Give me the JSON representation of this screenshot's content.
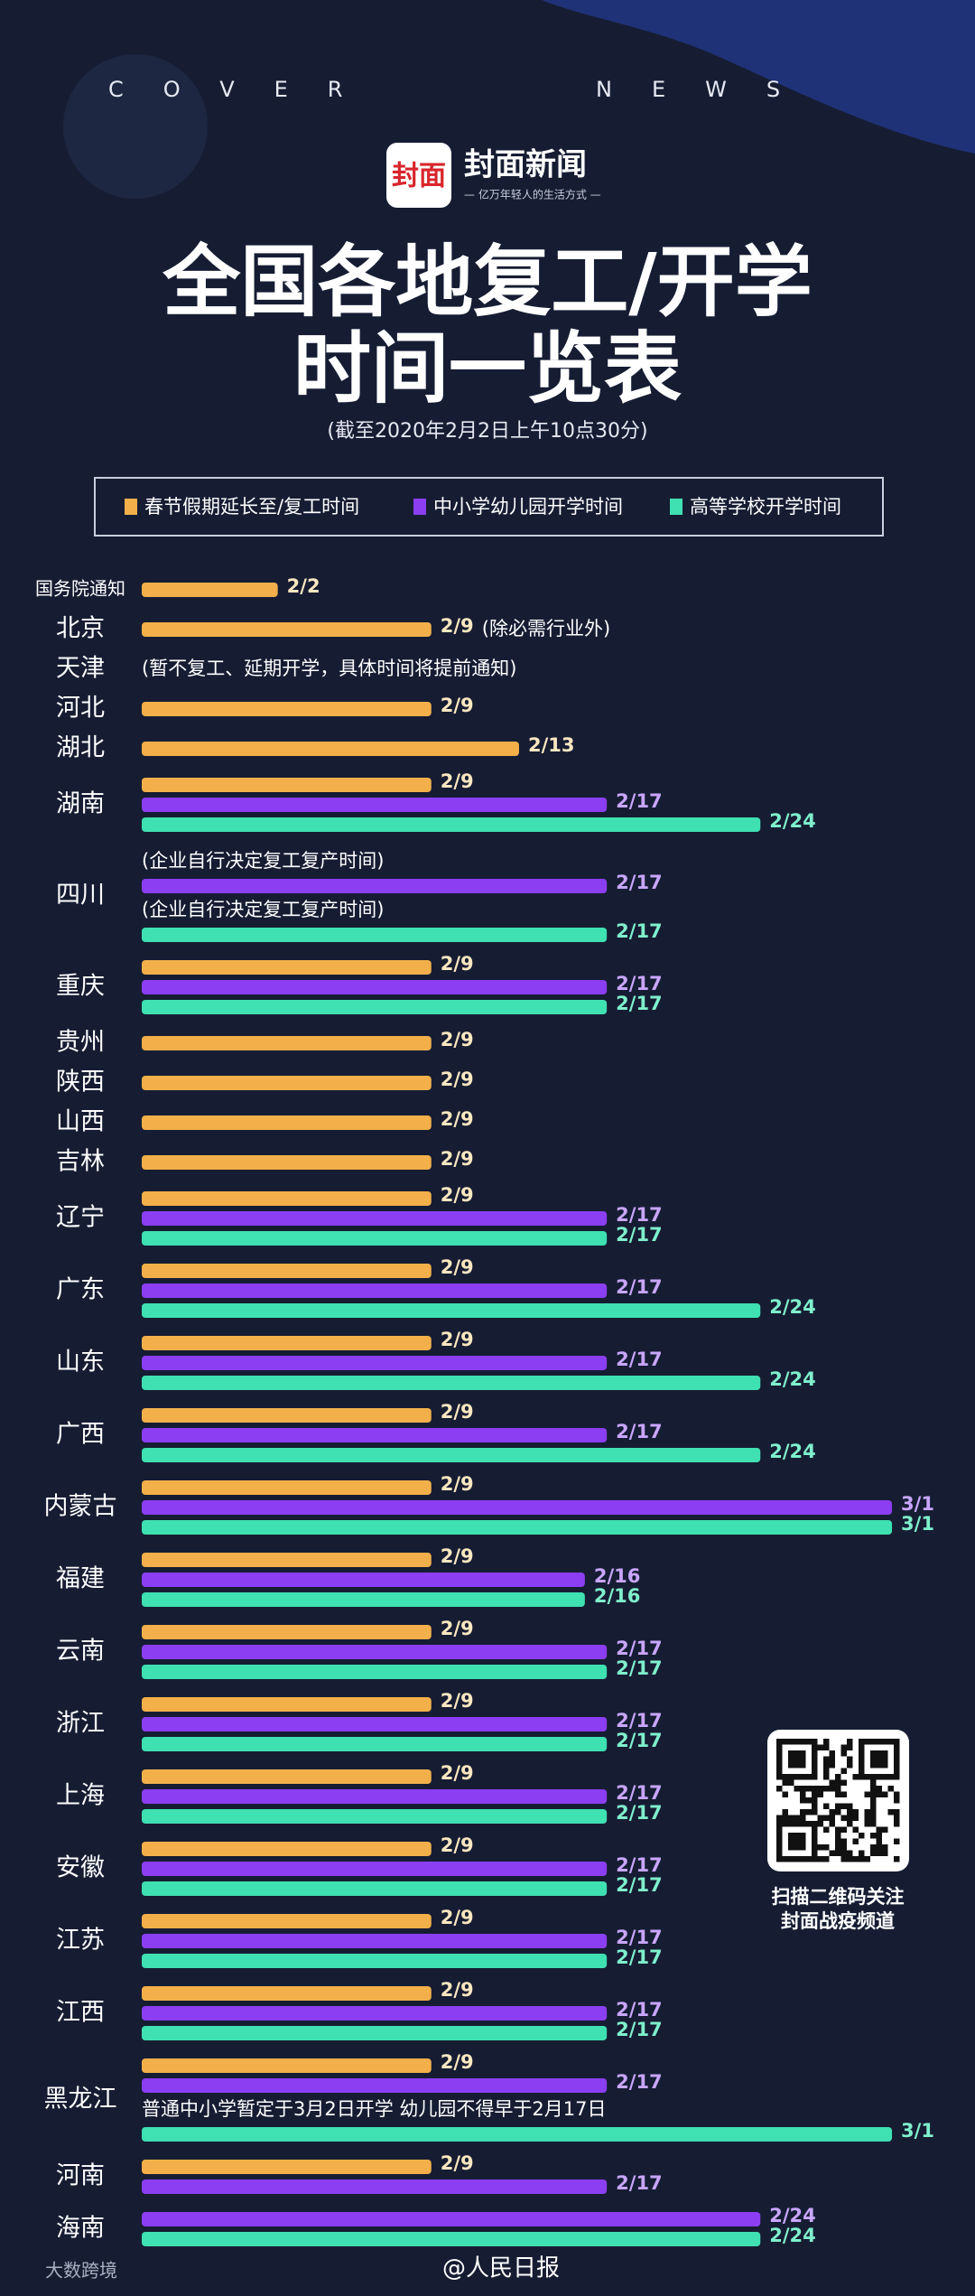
{
  "header": {
    "cover": "COVER",
    "news": "NEWS",
    "logo": "封面",
    "brand": "封面新闻",
    "slogan": "— 亿万年轻人的生活方式 —"
  },
  "qr": {
    "line1": "扫描二维码关注",
    "line2": "封面战疫频道"
  },
  "footer": {
    "left": "大数跨境",
    "right": "@人民日报"
  },
  "chart_data": {
    "type": "bar",
    "title_lines": [
      "全国各地复工/开学",
      "时间一览表"
    ],
    "subtitle": "(截至2020年2月2日上午10点30分)",
    "categories": [
      "国务院通知",
      "北京",
      "天津",
      "河北",
      "湖北",
      "湖南",
      "四川",
      "重庆",
      "贵州",
      "陕西",
      "山西",
      "吉林",
      "辽宁",
      "广东",
      "山东",
      "广西",
      "内蒙古",
      "福建",
      "云南",
      "浙江",
      "上海",
      "安徽",
      "江苏",
      "江西",
      "黑龙江",
      "河南",
      "海南"
    ],
    "notes": [
      null,
      "(除必需行业外)",
      "(暂不复工、延期开学，具体时间将提前通知)",
      null,
      null,
      null,
      "(企业自行决定复工复产时间)",
      null,
      null,
      null,
      null,
      null,
      null,
      null,
      null,
      null,
      null,
      null,
      null,
      null,
      null,
      null,
      null,
      null,
      "普通中小学暂定于3月2日开学 幼儿园不得早于2月17日",
      null,
      null
    ],
    "series": [
      {
        "name": "春节假期延长至/复工时间",
        "color": "#f3b04a",
        "values": [
          "2/2",
          "2/9",
          null,
          "2/9",
          "2/13",
          "2/9",
          null,
          "2/9",
          "2/9",
          "2/9",
          "2/9",
          "2/9",
          "2/9",
          "2/9",
          "2/9",
          "2/9",
          "2/9",
          "2/9",
          "2/9",
          "2/9",
          "2/9",
          "2/9",
          "2/9",
          "2/9",
          "2/9",
          "2/9",
          null
        ]
      },
      {
        "name": "中小学幼儿园开学时间",
        "color": "#8b3ef2",
        "values": [
          null,
          null,
          null,
          null,
          null,
          "2/17",
          "2/17",
          "2/17",
          null,
          null,
          null,
          null,
          "2/17",
          "2/17",
          "2/17",
          "2/17",
          "3/1",
          "2/16",
          "2/17",
          "2/17",
          "2/17",
          "2/17",
          "2/17",
          "2/17",
          "2/17",
          "2/17",
          "2/24"
        ]
      },
      {
        "name": "高等学校开学时间",
        "color": "#3fe0b2",
        "values": [
          null,
          null,
          null,
          null,
          null,
          "2/24",
          "2/17",
          "2/17",
          null,
          null,
          null,
          null,
          "2/17",
          "2/24",
          "2/24",
          "2/24",
          "3/1",
          "2/16",
          "2/17",
          "2/17",
          "2/17",
          "2/17",
          "2/17",
          "2/17",
          "3/1",
          null,
          "2/24"
        ]
      }
    ]
  }
}
